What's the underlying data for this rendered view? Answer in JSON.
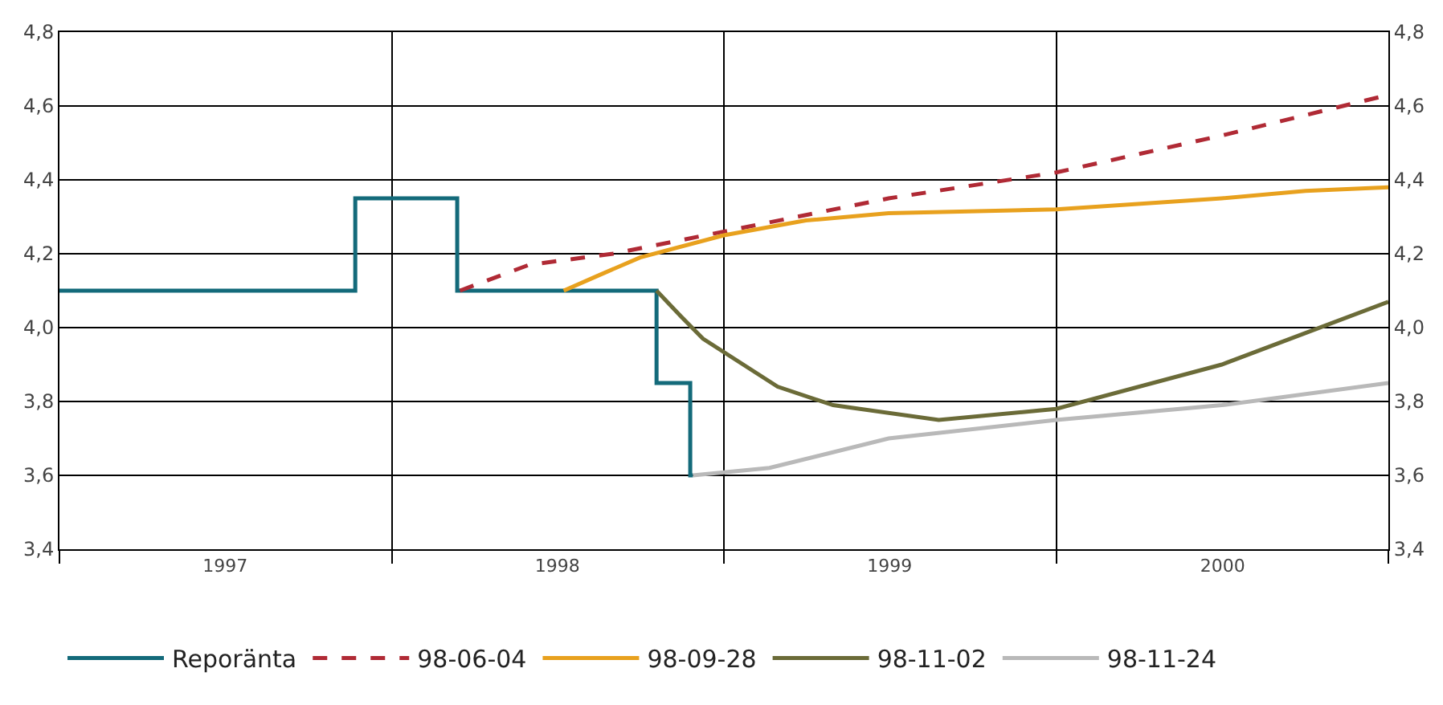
{
  "chart_data": {
    "type": "line",
    "series": [
      {
        "name": "Reporänta",
        "type": "step",
        "color": "#136a7a",
        "x": [
          "1997-01-01",
          "1997-11-22",
          "1998-03-14",
          "1998-10-19",
          "1998-11-25",
          "1998-11-28"
        ],
        "values": [
          4.1,
          4.35,
          4.1,
          3.85,
          3.6,
          3.6
        ]
      },
      {
        "name": "98-06-04",
        "color": "#b02a35",
        "line_style": "dashed",
        "x": [
          "1998-03-17",
          "1998-06-01",
          "1998-09-01",
          "1999-01-01",
          "1999-07-01",
          "2000-01-01",
          "2000-07-01",
          "2000-12-31"
        ],
        "values": [
          4.1,
          4.17,
          4.2,
          4.26,
          4.35,
          4.42,
          4.52,
          4.63
        ]
      },
      {
        "name": "98-09-28",
        "color": "#e8a11e",
        "x": [
          "1998-07-09",
          "1998-08-15",
          "1998-10-01",
          "1999-01-01",
          "1999-04-01",
          "1999-07-01",
          "2000-01-01",
          "2000-07-01",
          "2000-10-01",
          "2000-12-31"
        ],
        "values": [
          4.1,
          4.14,
          4.19,
          4.25,
          4.29,
          4.31,
          4.32,
          4.35,
          4.37,
          4.38
        ]
      },
      {
        "name": "98-11-02",
        "color": "#6b6b38",
        "x": [
          "1998-10-19",
          "1998-11-15",
          "1998-12-09",
          "1999-03-01",
          "1999-05-01",
          "1999-08-25",
          "2000-01-01",
          "2000-07-01",
          "2000-12-31"
        ],
        "values": [
          4.1,
          4.03,
          3.97,
          3.84,
          3.79,
          3.75,
          3.78,
          3.9,
          4.07
        ]
      },
      {
        "name": "98-11-24",
        "color": "#b9b9b9",
        "x": [
          "1998-11-28",
          "1999-02-20",
          "1999-07-01",
          "2000-01-01",
          "2000-07-01",
          "2000-12-31"
        ],
        "values": [
          3.6,
          3.62,
          3.7,
          3.75,
          3.79,
          3.85
        ]
      }
    ],
    "xlim": [
      "1997-01-01",
      "2000-12-31"
    ],
    "xticks": [
      {
        "value": "1997-01-01",
        "label": null
      },
      {
        "value": "1997-07-02",
        "label": "1997"
      },
      {
        "value": "1998-01-01",
        "label": null
      },
      {
        "value": "1998-07-02",
        "label": "1998"
      },
      {
        "value": "1999-01-01",
        "label": null
      },
      {
        "value": "1999-07-02",
        "label": "1999"
      },
      {
        "value": "2000-01-01",
        "label": null
      },
      {
        "value": "2000-07-02",
        "label": "2000"
      },
      {
        "value": "2000-12-31",
        "label": null
      }
    ],
    "ylim": [
      3.4,
      4.8
    ],
    "yticks": [
      {
        "value": 3.4,
        "label": "3,4"
      },
      {
        "value": 3.6,
        "label": "3,6"
      },
      {
        "value": 3.8,
        "label": "3,8"
      },
      {
        "value": 4.0,
        "label": "4,0"
      },
      {
        "value": 4.2,
        "label": "4,2"
      },
      {
        "value": 4.4,
        "label": "4,4"
      },
      {
        "value": 4.6,
        "label": "4,6"
      },
      {
        "value": 4.8,
        "label": "4,8"
      }
    ],
    "y2lim": [
      3.4,
      4.8
    ],
    "y2ticks": [
      {
        "value": 3.4,
        "label": "3,4"
      },
      {
        "value": 3.6,
        "label": "3,6"
      },
      {
        "value": 3.8,
        "label": "3,8"
      },
      {
        "value": 4.0,
        "label": "4,0"
      },
      {
        "value": 4.2,
        "label": "4,2"
      },
      {
        "value": 4.4,
        "label": "4,4"
      },
      {
        "value": 4.6,
        "label": "4,6"
      },
      {
        "value": 4.8,
        "label": "4,8"
      }
    ],
    "grid": true,
    "legend": "bottom"
  }
}
